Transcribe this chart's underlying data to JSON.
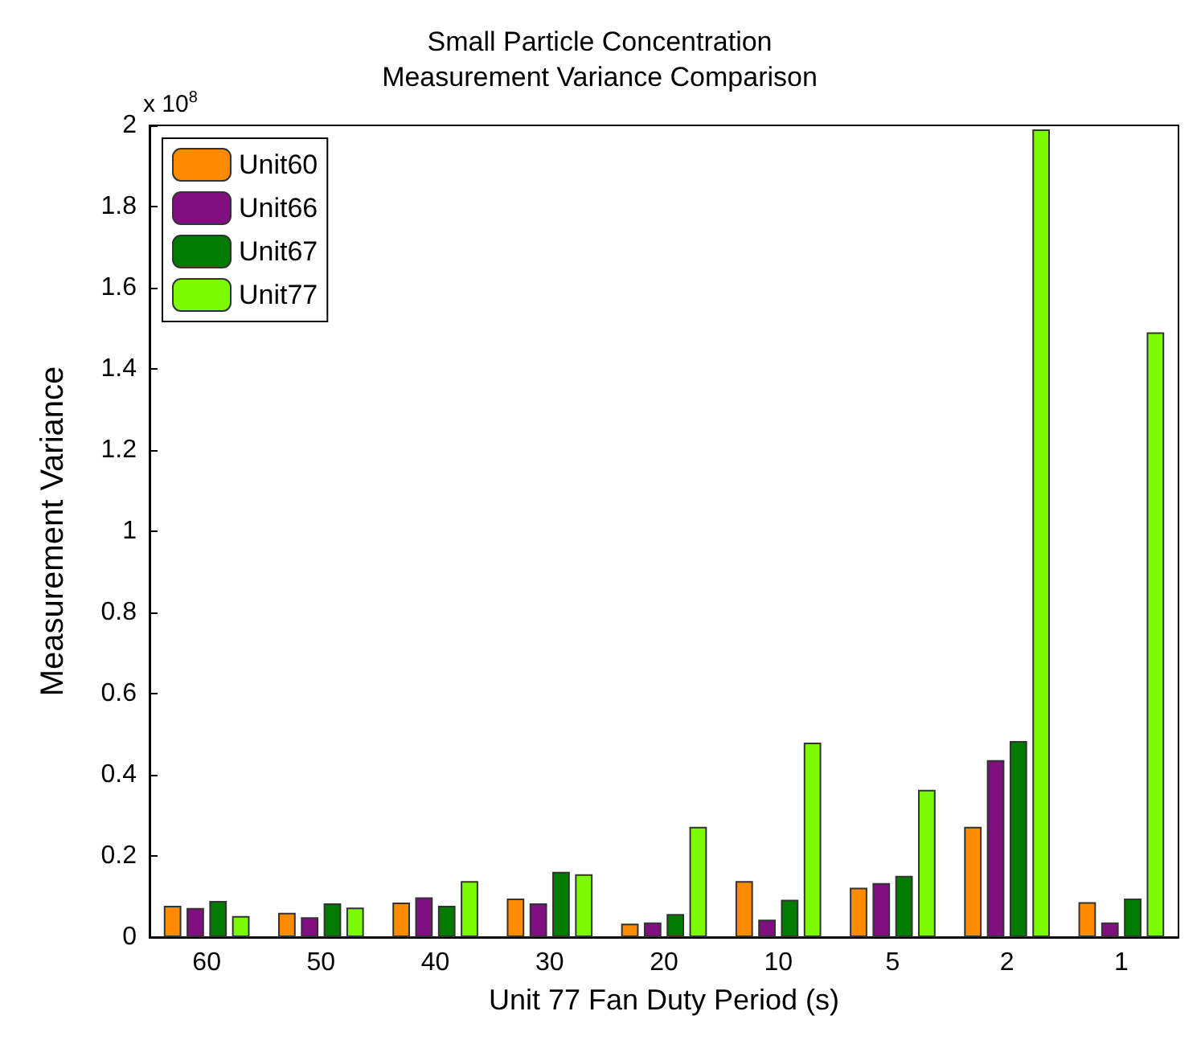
{
  "chart_data": {
    "type": "bar",
    "title": "Small Particle Concentration\nMeasurement Variance Comparison",
    "xlabel": "Unit 77 Fan Duty Period (s)",
    "ylabel": "Measurement Variance",
    "annotations": [
      "x 10$^{8}$"
    ],
    "categories": [
      "60",
      "50",
      "40",
      "30",
      "20",
      "10",
      "5",
      "2",
      "1"
    ],
    "series": [
      {
        "name": "Unit60",
        "color": "#ff8c00",
        "values": [
          0.077,
          0.06,
          0.085,
          0.095,
          0.033,
          0.138,
          0.122,
          0.272,
          0.086
        ]
      },
      {
        "name": "Unit66",
        "color": "#800f80",
        "values": [
          0.072,
          0.049,
          0.098,
          0.083,
          0.036,
          0.043,
          0.133,
          0.436,
          0.036
        ]
      },
      {
        "name": "Unit67",
        "color": "#007b00",
        "values": [
          0.089,
          0.083,
          0.077,
          0.161,
          0.057,
          0.092,
          0.151,
          0.483,
          0.095
        ]
      },
      {
        "name": "Unit77",
        "color": "#7cfc00",
        "values": [
          0.052,
          0.073,
          0.138,
          0.155,
          0.272,
          0.479,
          0.363,
          1.99,
          1.49
        ]
      }
    ],
    "ylim": [
      0,
      2
    ],
    "yticks": [
      0,
      0.2,
      0.4,
      0.6,
      0.8,
      1,
      1.2,
      1.4,
      1.6,
      1.8,
      2
    ],
    "grid": false,
    "legend": "top left"
  }
}
